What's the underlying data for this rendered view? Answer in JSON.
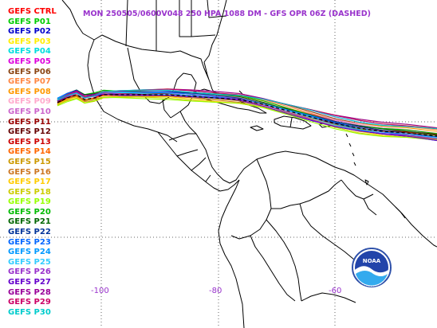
{
  "title": "MON 250505/0600V048  250 HPA 1088 DM - GFS OPR 06Z (DASHED)",
  "legend": [
    {
      "label": "GEFS CTRL",
      "color": "#ff0000"
    },
    {
      "label": "GEFS P01",
      "color": "#00cc00"
    },
    {
      "label": "GEFS P02",
      "color": "#0000cc"
    },
    {
      "label": "GEFS P03",
      "color": "#ffee00"
    },
    {
      "label": "GEFS P04",
      "color": "#00dddd"
    },
    {
      "label": "GEFS P05",
      "color": "#dd00dd"
    },
    {
      "label": "GEFS P06",
      "color": "#8b4513"
    },
    {
      "label": "GEFS P07",
      "color": "#ff8844"
    },
    {
      "label": "GEFS P08",
      "color": "#ff9900"
    },
    {
      "label": "GEFS P09",
      "color": "#ffaacc"
    },
    {
      "label": "GEFS P10",
      "color": "#cc66cc"
    },
    {
      "label": "GEFS P11",
      "color": "#990000"
    },
    {
      "label": "GEFS P12",
      "color": "#660000"
    },
    {
      "label": "GEFS P13",
      "color": "#cc0000"
    },
    {
      "label": "GEFS P14",
      "color": "#ff6600"
    },
    {
      "label": "GEFS P15",
      "color": "#cc9900"
    },
    {
      "label": "GEFS P16",
      "color": "#cc7722"
    },
    {
      "label": "GEFS P17",
      "color": "#ffcc00"
    },
    {
      "label": "GEFS P18",
      "color": "#cccc00"
    },
    {
      "label": "GEFS P19",
      "color": "#99ff00"
    },
    {
      "label": "GEFS P20",
      "color": "#00bb00"
    },
    {
      "label": "GEFS P21",
      "color": "#006600"
    },
    {
      "label": "GEFS P22",
      "color": "#003399"
    },
    {
      "label": "GEFS P23",
      "color": "#0066ff"
    },
    {
      "label": "GEFS P24",
      "color": "#0099ff"
    },
    {
      "label": "GEFS P25",
      "color": "#33ccff"
    },
    {
      "label": "GEFS P26",
      "color": "#9933cc"
    },
    {
      "label": "GEFS P27",
      "color": "#6600cc"
    },
    {
      "label": "GEFS P28",
      "color": "#990099"
    },
    {
      "label": "GEFS P29",
      "color": "#cc0066"
    },
    {
      "label": "GEFS P30",
      "color": "#00cccc"
    }
  ],
  "longitude_labels": [
    "-100",
    "-80",
    "-60"
  ],
  "logo_text": "NOAA",
  "colors": {
    "title": "#9933cc",
    "grid": "#666666",
    "coast": "#000000"
  }
}
